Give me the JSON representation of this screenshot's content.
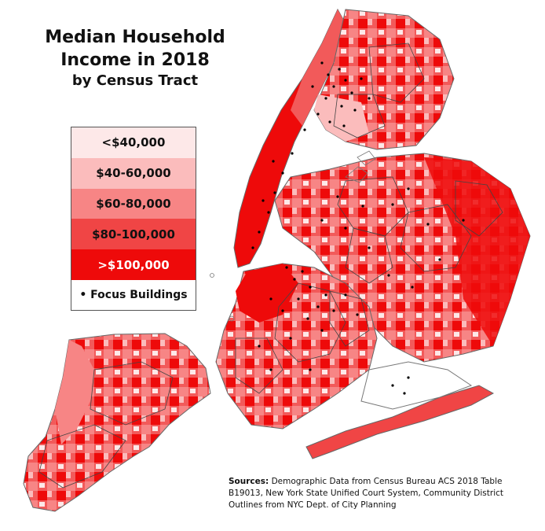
{
  "title": {
    "line1": "Median Household",
    "line2": "Income in 2018",
    "line3": "by Census Tract"
  },
  "legend": {
    "items": [
      {
        "label": "<$40,000",
        "color": "#fde8e8",
        "text_color": "#111111"
      },
      {
        "label": "$40-60,000",
        "color": "#fbbcbc",
        "text_color": "#111111"
      },
      {
        "label": "$60-80,000",
        "color": "#f78585",
        "text_color": "#111111"
      },
      {
        "label": "$80-100,000",
        "color": "#f04545",
        "text_color": "#111111"
      },
      {
        "label": ">$100,000",
        "color": "#ee0a0a",
        "text_color": "#ffffff"
      }
    ],
    "focus_label": "• Focus Buildings"
  },
  "map": {
    "district_outline_color": "#444444",
    "focus_dot_color": "#000000"
  },
  "sources": {
    "heading": "Sources:",
    "text": "Demographic Data from Census Bureau ACS 2018 Table B19013, New York State Unified Court System, Community District Outlines from NYC Dept. of City Planning"
  }
}
